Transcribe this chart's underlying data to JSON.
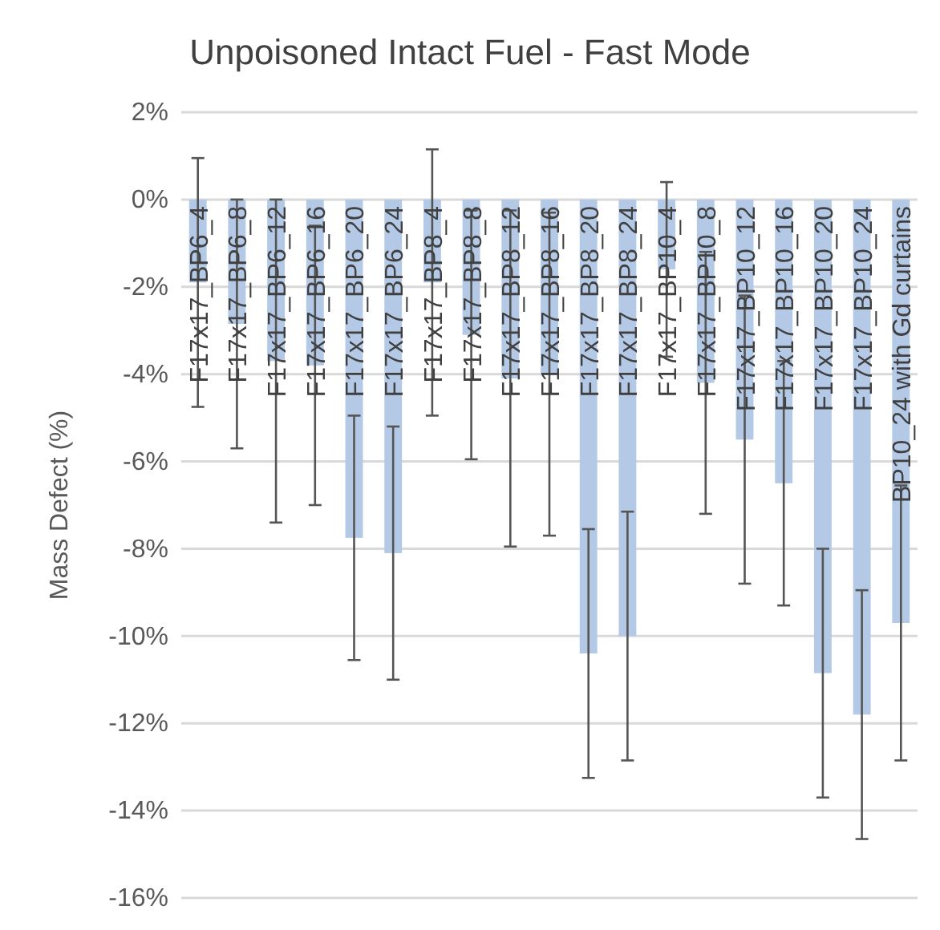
{
  "chart_data": {
    "type": "bar",
    "title": "Unpoisoned Intact Fuel - Fast Mode",
    "ylabel": "Mass Defect (%)",
    "categories": [
      "F17x17_BP6_4",
      "F17x17_BP6_8",
      "F17x17_BP6_12",
      "F17x17_BP6_16",
      "F17x17_BP6_20",
      "F17x17_BP6_24",
      "F17x17_BP8_4",
      "F17x17_BP8_8",
      "F17x17_BP8_12",
      "F17x17_BP8_16",
      "F17x17_BP8_20",
      "F17x17_BP8_24",
      "F17x17_BP10_4",
      "F17x17_BP10_8",
      "F17x17_BP10_12",
      "F17x17_BP10_16",
      "F17x17_BP10_20",
      "F17x17_BP10_24",
      "BP10_24 with Gd curtains"
    ],
    "values": [
      -1.9,
      -2.85,
      -3.7,
      -3.8,
      -7.75,
      -8.1,
      -1.9,
      -3.1,
      -4.1,
      -4.0,
      -10.4,
      -10.0,
      -1.6,
      -4.2,
      -5.5,
      -6.5,
      -10.85,
      -11.8,
      -9.7
    ],
    "errors": [
      2.85,
      2.85,
      3.7,
      3.2,
      2.8,
      2.9,
      3.05,
      2.85,
      3.85,
      3.7,
      2.85,
      2.85,
      2.0,
      3.0,
      3.3,
      2.8,
      2.85,
      2.85,
      3.15
    ],
    "color": "#b4c9e6",
    "ylim": [
      -16,
      2
    ],
    "yticks": [
      {
        "value": 2,
        "label": "2%"
      },
      {
        "value": 0,
        "label": "0%"
      },
      {
        "value": -2,
        "label": "-2%"
      },
      {
        "value": -4,
        "label": "-4%"
      },
      {
        "value": -6,
        "label": "-6%"
      },
      {
        "value": -8,
        "label": "-8%"
      },
      {
        "value": -10,
        "label": "-10%"
      },
      {
        "value": -12,
        "label": "-12%"
      },
      {
        "value": -14,
        "label": "-14%"
      },
      {
        "value": -16,
        "label": "-16%"
      }
    ],
    "grid": "y"
  }
}
